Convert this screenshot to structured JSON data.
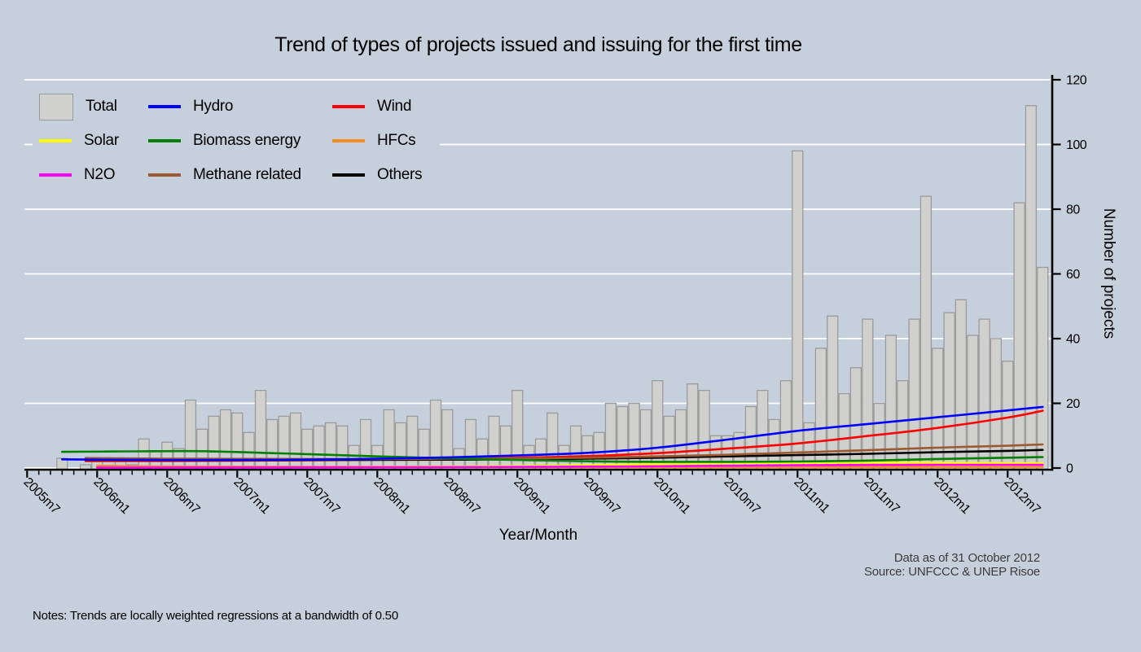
{
  "title": "Trend of types of projects issued and issuing for the first time",
  "colors": {
    "background": "#c6d0dc",
    "gridline": "#ffffff",
    "axis": "#000000",
    "bar_fill": "#d0d0ce",
    "bar_border": "#9b9b9b",
    "hydro": "#0000ff",
    "wind": "#ff0000",
    "solar": "#ffff00",
    "biomass": "#008000",
    "hfcs": "#f68b1f",
    "n2o": "#ff00ff",
    "methane": "#9c5a32",
    "others": "#000000"
  },
  "legend": {
    "items": [
      {
        "label": "Total",
        "swatch": "box",
        "color": "#d0d0ce",
        "border": "#9b9b9b"
      },
      {
        "label": "Hydro",
        "swatch": "line",
        "color": "#0000ff"
      },
      {
        "label": "Wind",
        "swatch": "line",
        "color": "#ff0000"
      },
      {
        "label": "Solar",
        "swatch": "line",
        "color": "#ffff00"
      },
      {
        "label": "Biomass energy",
        "swatch": "line",
        "color": "#008000"
      },
      {
        "label": "HFCs",
        "swatch": "line",
        "color": "#f68b1f"
      },
      {
        "label": "N2O",
        "swatch": "line",
        "color": "#ff00ff"
      },
      {
        "label": "Methane related",
        "swatch": "line",
        "color": "#9c5a32"
      },
      {
        "label": "Others",
        "swatch": "line",
        "color": "#000000"
      }
    ]
  },
  "chart_data": {
    "type": "bar",
    "title": "Trend of types of projects issued and issuing for the first time",
    "xlabel": "Year/Month",
    "ylabel": "Number of projects",
    "ylim": [
      0,
      120
    ],
    "y_ticks": [
      0,
      20,
      40,
      60,
      80,
      100,
      120
    ],
    "x_start_month": "2005m7",
    "x_end_month": "2012m10",
    "x_tick_step_months": 6,
    "x_tick_labels": [
      "2005m7",
      "2006m1",
      "2006m7",
      "2007m1",
      "2007m7",
      "2008m1",
      "2008m7",
      "2009m1",
      "2009m7",
      "2010m1",
      "2010m7",
      "2011m1",
      "2011m7",
      "2012m1",
      "2012m7"
    ],
    "grid": true,
    "legend_position": "top-left",
    "bars": {
      "name": "Total",
      "fill": "#d0d0ce",
      "border": "#9b9b9b",
      "values": [
        null,
        null,
        null,
        3,
        null,
        1,
        2,
        null,
        3,
        1,
        9,
        5,
        8,
        6,
        21,
        12,
        16,
        18,
        17,
        11,
        24,
        15,
        16,
        17,
        12,
        13,
        14,
        13,
        7,
        15,
        7,
        18,
        14,
        16,
        12,
        21,
        18,
        6,
        15,
        9,
        16,
        13,
        24,
        7,
        9,
        17,
        7,
        13,
        10,
        11,
        20,
        19,
        20,
        18,
        27,
        16,
        18,
        26,
        24,
        10,
        10,
        11,
        19,
        24,
        15,
        27,
        98,
        14,
        37,
        47,
        23,
        31,
        46,
        20,
        41,
        27,
        46,
        84,
        37,
        48,
        52,
        41,
        46,
        40,
        33,
        82,
        112,
        62
      ]
    },
    "series": [
      {
        "name": "Solar",
        "color": "#ffff00",
        "points": [
          [
            6,
            0.15
          ],
          [
            12,
            0.2
          ],
          [
            24,
            0.3
          ],
          [
            36,
            0.45
          ],
          [
            42,
            0.6
          ],
          [
            48,
            0.85
          ],
          [
            54,
            1.2
          ],
          [
            60,
            1.5
          ],
          [
            66,
            1.65
          ],
          [
            72,
            1.7
          ],
          [
            78,
            1.6
          ],
          [
            84,
            1.5
          ],
          [
            87,
            1.5
          ]
        ]
      },
      {
        "name": "HFCs",
        "color": "#f68b1f",
        "points": [
          [
            6,
            0.7
          ],
          [
            12,
            0.5
          ],
          [
            18,
            0.42
          ],
          [
            24,
            0.38
          ],
          [
            30,
            0.33
          ],
          [
            36,
            0.3
          ],
          [
            48,
            0.27
          ],
          [
            60,
            0.27
          ],
          [
            72,
            0.3
          ],
          [
            84,
            0.32
          ],
          [
            87,
            0.35
          ]
        ]
      },
      {
        "name": "N2O",
        "color": "#ff00ff",
        "points": [
          [
            6,
            0.15
          ],
          [
            12,
            0.15
          ],
          [
            24,
            0.2
          ],
          [
            36,
            0.3
          ],
          [
            42,
            0.35
          ],
          [
            48,
            0.45
          ],
          [
            54,
            0.55
          ],
          [
            60,
            0.7
          ],
          [
            66,
            0.85
          ],
          [
            72,
            0.95
          ],
          [
            78,
            1.0
          ],
          [
            84,
            1.0
          ],
          [
            87,
            1.0
          ]
        ]
      },
      {
        "name": "Wind",
        "color": "#ff0000",
        "points": [
          [
            5,
            2.2
          ],
          [
            12,
            2.2
          ],
          [
            18,
            2.3
          ],
          [
            24,
            2.4
          ],
          [
            30,
            2.6
          ],
          [
            36,
            2.9
          ],
          [
            42,
            3.2
          ],
          [
            48,
            3.7
          ],
          [
            54,
            4.6
          ],
          [
            60,
            6.0
          ],
          [
            66,
            7.6
          ],
          [
            72,
            9.9
          ],
          [
            78,
            12.4
          ],
          [
            84,
            15.6
          ],
          [
            87,
            17.7
          ]
        ]
      },
      {
        "name": "Others",
        "color": "#000000",
        "points": [
          [
            5,
            2.5
          ],
          [
            12,
            2.45
          ],
          [
            18,
            2.45
          ],
          [
            24,
            2.5
          ],
          [
            30,
            2.55
          ],
          [
            36,
            2.6
          ],
          [
            42,
            2.7
          ],
          [
            48,
            2.9
          ],
          [
            54,
            3.2
          ],
          [
            60,
            3.6
          ],
          [
            66,
            4.0
          ],
          [
            72,
            4.4
          ],
          [
            78,
            4.9
          ],
          [
            84,
            5.3
          ],
          [
            87,
            5.6
          ]
        ]
      },
      {
        "name": "Methane related",
        "color": "#9c5a32",
        "points": [
          [
            5,
            3.1
          ],
          [
            12,
            2.9
          ],
          [
            18,
            2.85
          ],
          [
            24,
            2.8
          ],
          [
            30,
            2.8
          ],
          [
            36,
            2.9
          ],
          [
            42,
            3.0
          ],
          [
            48,
            3.2
          ],
          [
            54,
            3.6
          ],
          [
            60,
            4.1
          ],
          [
            66,
            4.8
          ],
          [
            72,
            5.5
          ],
          [
            78,
            6.3
          ],
          [
            84,
            6.9
          ],
          [
            87,
            7.3
          ]
        ]
      },
      {
        "name": "Biomass energy",
        "color": "#008000",
        "points": [
          [
            3,
            5.0
          ],
          [
            9,
            5.15
          ],
          [
            15,
            5.2
          ],
          [
            21,
            4.6
          ],
          [
            24,
            4.3
          ],
          [
            30,
            3.6
          ],
          [
            36,
            3.0
          ],
          [
            42,
            2.5
          ],
          [
            48,
            2.1
          ],
          [
            54,
            1.9
          ],
          [
            60,
            1.9
          ],
          [
            66,
            2.0
          ],
          [
            72,
            2.3
          ],
          [
            78,
            2.8
          ],
          [
            84,
            3.2
          ],
          [
            87,
            3.4
          ]
        ]
      },
      {
        "name": "Hydro",
        "color": "#0000ff",
        "points": [
          [
            3,
            2.7
          ],
          [
            6,
            2.6
          ],
          [
            12,
            2.5
          ],
          [
            18,
            2.5
          ],
          [
            24,
            2.6
          ],
          [
            30,
            2.9
          ],
          [
            36,
            3.3
          ],
          [
            42,
            3.9
          ],
          [
            48,
            4.7
          ],
          [
            54,
            6.3
          ],
          [
            60,
            8.8
          ],
          [
            66,
            11.5
          ],
          [
            72,
            13.6
          ],
          [
            78,
            15.7
          ],
          [
            84,
            17.8
          ],
          [
            87,
            18.9
          ]
        ]
      }
    ]
  },
  "footer": {
    "source_line1": "Data as of 31 October 2012",
    "source_line2": "Source: UNFCCC & UNEP Risoe",
    "notes": "Notes: Trends are locally weighted regressions at a bandwidth of 0.50"
  }
}
